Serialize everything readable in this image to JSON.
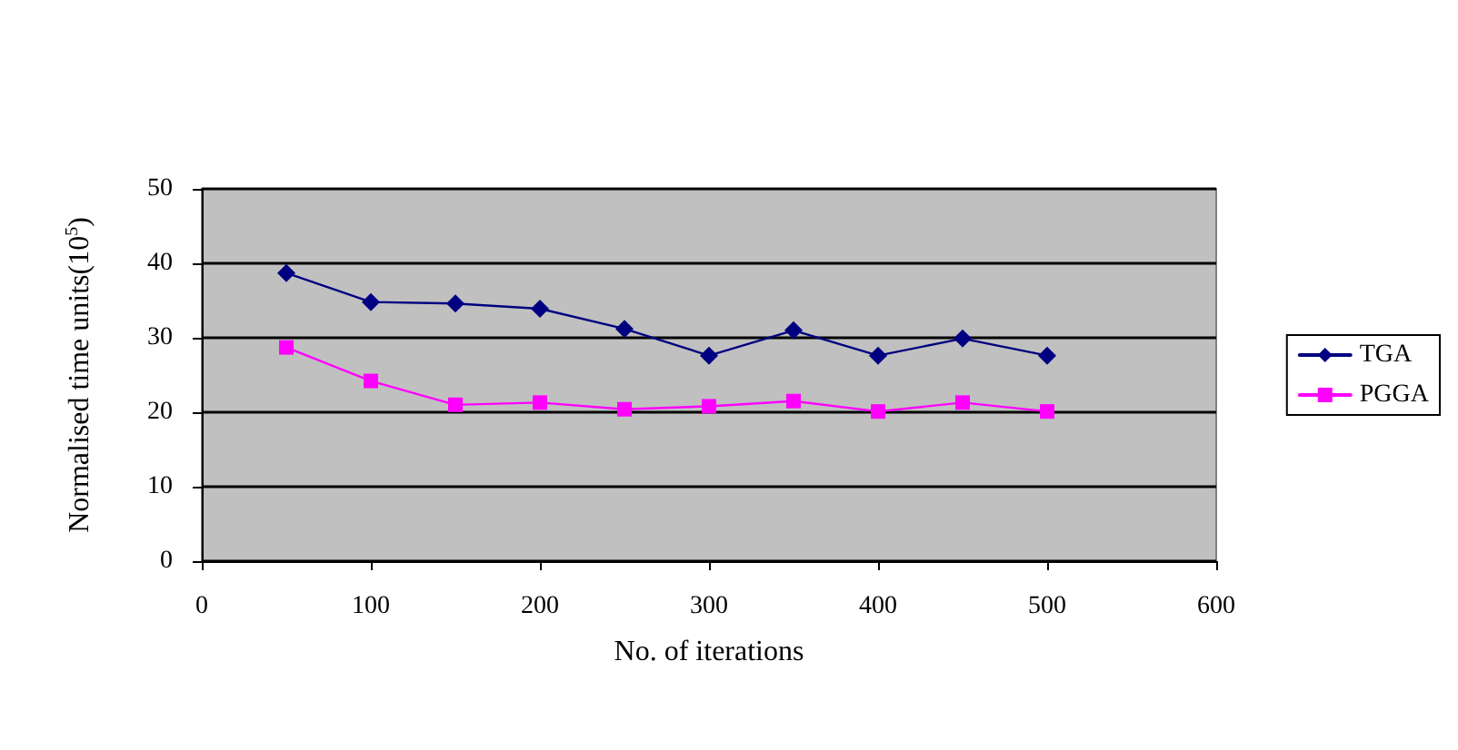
{
  "chart_data": {
    "type": "line",
    "xlabel": "No. of iterations",
    "ylabel": "Normalised time units(10$^{5}$)",
    "x": [
      50,
      100,
      150,
      200,
      250,
      300,
      350,
      400,
      450,
      500
    ],
    "series": [
      {
        "name": "TGA",
        "color": "#000080",
        "marker": "diamond",
        "values": [
          38.7,
          34.8,
          34.6,
          33.9,
          31.2,
          27.6,
          31.0,
          27.6,
          29.9,
          27.6
        ]
      },
      {
        "name": "PGGA",
        "color": "#ff00ff",
        "marker": "square",
        "values": [
          28.7,
          24.2,
          21.0,
          21.3,
          20.4,
          20.8,
          21.5,
          20.1,
          21.3,
          20.1
        ]
      }
    ],
    "xlim": [
      0,
      600
    ],
    "xticks": [
      0,
      100,
      200,
      300,
      400,
      500,
      600
    ],
    "ylim": [
      0,
      50
    ],
    "yticks": [
      0,
      10,
      20,
      30,
      40,
      50
    ],
    "grid": "y",
    "legend": "right",
    "line_style": "solid"
  }
}
